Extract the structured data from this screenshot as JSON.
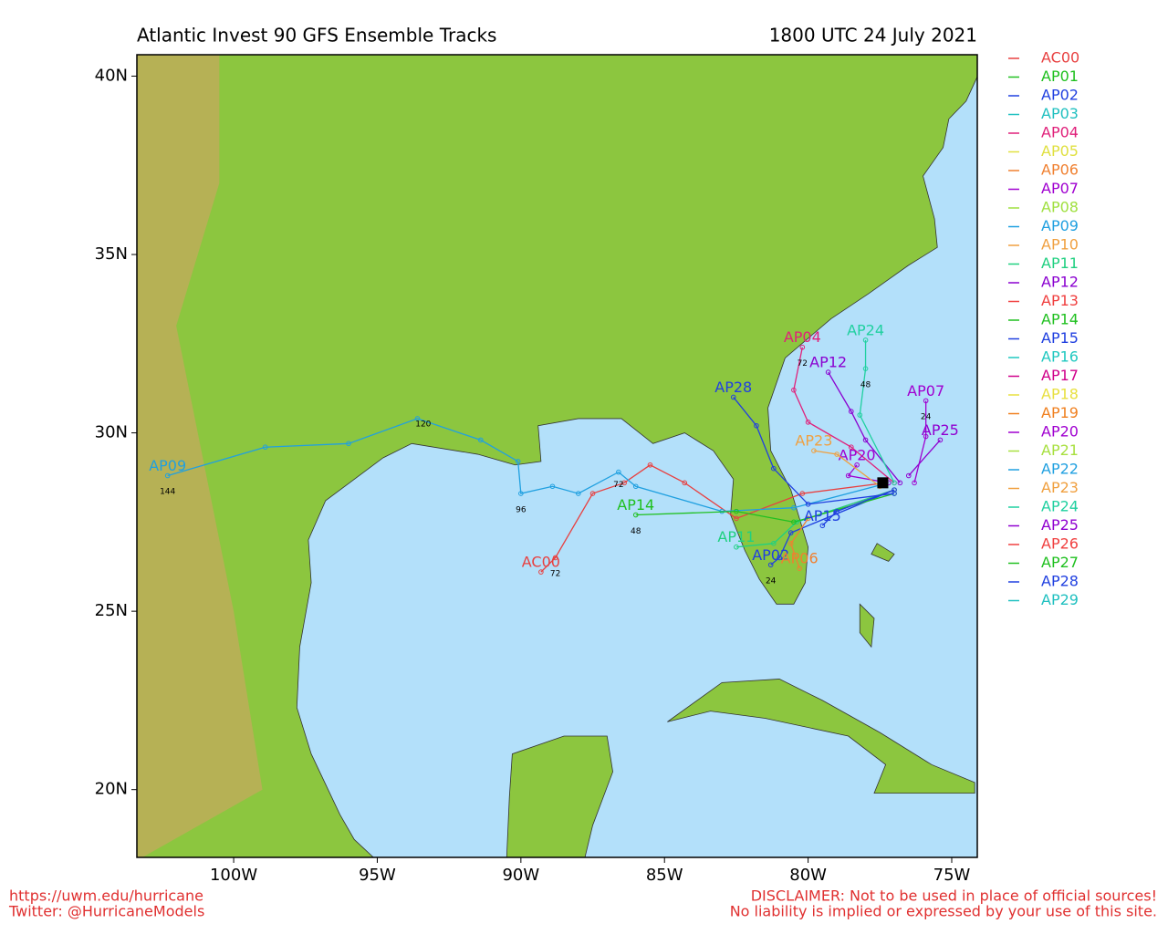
{
  "map_data": {
    "title": "Atlantic Invest 90 GFS Ensemble Tracks",
    "date": "1800 UTC 24 July 2021",
    "xlim": [
      -103.37,
      -74.11
    ],
    "ylim": [
      18.1,
      40.6
    ],
    "xticks": [
      {
        "value": -100,
        "label": "100W"
      },
      {
        "value": -95,
        "label": "95W"
      },
      {
        "value": -90,
        "label": "90W"
      },
      {
        "value": -85,
        "label": "85W"
      },
      {
        "value": -80,
        "label": "80W"
      },
      {
        "value": -75,
        "label": "75W"
      }
    ],
    "yticks": [
      {
        "value": 20,
        "label": "20N"
      },
      {
        "value": 25,
        "label": "25N"
      },
      {
        "value": 30,
        "label": "30N"
      },
      {
        "value": 35,
        "label": "35N"
      },
      {
        "value": 40,
        "label": "40N"
      }
    ],
    "members": [
      {
        "name": "AC00",
        "color": "#e84040",
        "track": [
          [
            -77.3,
            28.6
          ],
          [
            -80.2,
            28.3
          ],
          [
            -82.5,
            27.6
          ],
          [
            -84.3,
            28.6
          ],
          [
            -85.5,
            29.1
          ],
          [
            -86.4,
            28.6
          ],
          [
            -87.5,
            28.3
          ],
          [
            -88.8,
            26.5
          ],
          [
            -89.3,
            26.1
          ]
        ]
      },
      {
        "name": "AP01",
        "color": "#20c020"
      },
      {
        "name": "AP02",
        "color": "#2040e0",
        "track": [
          [
            -77.0,
            28.4
          ],
          [
            -80.6,
            27.2
          ],
          [
            -81.0,
            26.5
          ],
          [
            -81.3,
            26.3
          ]
        ]
      },
      {
        "name": "AP03",
        "color": "#20c0c0"
      },
      {
        "name": "AP04",
        "color": "#e0207a",
        "track": [
          [
            -77.0,
            28.6
          ],
          [
            -78.5,
            29.6
          ],
          [
            -80.0,
            30.3
          ],
          [
            -80.5,
            31.2
          ],
          [
            -80.2,
            32.4
          ]
        ]
      },
      {
        "name": "AP05",
        "color": "#e0e040"
      },
      {
        "name": "AP06",
        "color": "#f08030",
        "track": [
          [
            -77.0,
            28.4
          ],
          [
            -80.0,
            27.6
          ],
          [
            -80.6,
            26.9
          ],
          [
            -80.3,
            26.2
          ]
        ]
      },
      {
        "name": "AP07",
        "color": "#a000d0",
        "track": [
          [
            -76.3,
            28.6
          ],
          [
            -75.9,
            29.9
          ],
          [
            -75.9,
            30.9
          ]
        ]
      },
      {
        "name": "AP08",
        "color": "#a0e040"
      },
      {
        "name": "AP09",
        "color": "#20a0e0",
        "track": [
          [
            -77.2,
            28.6
          ],
          [
            -80.5,
            27.9
          ],
          [
            -83.0,
            27.8
          ],
          [
            -86.0,
            28.5
          ],
          [
            -86.6,
            28.9
          ],
          [
            -88.0,
            28.3
          ],
          [
            -88.9,
            28.5
          ],
          [
            -90.0,
            28.3
          ],
          [
            -90.1,
            29.2
          ],
          [
            -91.4,
            29.8
          ],
          [
            -93.6,
            30.4
          ],
          [
            -96.0,
            29.7
          ],
          [
            -98.9,
            29.6
          ],
          [
            -102.3,
            28.8
          ]
        ]
      },
      {
        "name": "AP10",
        "color": "#f0a040"
      },
      {
        "name": "AP11",
        "color": "#20d080",
        "track": [
          [
            -77.0,
            28.4
          ],
          [
            -80.4,
            27.5
          ],
          [
            -81.2,
            26.9
          ],
          [
            -82.5,
            26.8
          ]
        ]
      },
      {
        "name": "AP12",
        "color": "#8a00d0",
        "track": [
          [
            -76.8,
            28.6
          ],
          [
            -78.0,
            29.8
          ],
          [
            -78.5,
            30.6
          ],
          [
            -79.3,
            31.7
          ]
        ]
      },
      {
        "name": "AP13",
        "color": "#f04040"
      },
      {
        "name": "AP14",
        "color": "#20c020",
        "track": [
          [
            -77.0,
            28.3
          ],
          [
            -80.5,
            27.5
          ],
          [
            -82.5,
            27.8
          ],
          [
            -86.0,
            27.7
          ]
        ]
      },
      {
        "name": "AP15",
        "color": "#2040e0",
        "track": [
          [
            -77.0,
            28.4
          ],
          [
            -79.0,
            27.8
          ],
          [
            -79.5,
            27.4
          ]
        ]
      },
      {
        "name": "AP16",
        "color": "#20c8c0"
      },
      {
        "name": "AP17",
        "color": "#d0008a"
      },
      {
        "name": "AP18",
        "color": "#e8e040"
      },
      {
        "name": "AP19",
        "color": "#f08020"
      },
      {
        "name": "AP20",
        "color": "#a000d0",
        "track": [
          [
            -77.2,
            28.6
          ],
          [
            -78.6,
            28.8
          ],
          [
            -78.3,
            29.1
          ]
        ]
      },
      {
        "name": "AP21",
        "color": "#a8e040"
      },
      {
        "name": "AP22",
        "color": "#20a0e0"
      },
      {
        "name": "AP23",
        "color": "#f0a040",
        "track": [
          [
            -77.5,
            28.5
          ],
          [
            -79.0,
            29.4
          ],
          [
            -79.8,
            29.5
          ]
        ]
      },
      {
        "name": "AP24",
        "color": "#20d0a0",
        "track": [
          [
            -77.0,
            28.6
          ],
          [
            -78.2,
            30.5
          ],
          [
            -78.0,
            31.8
          ],
          [
            -78.0,
            32.6
          ]
        ]
      },
      {
        "name": "AP25",
        "color": "#9000d0",
        "track": [
          [
            -76.5,
            28.8
          ],
          [
            -75.4,
            29.8
          ]
        ]
      },
      {
        "name": "AP26",
        "color": "#f04040"
      },
      {
        "name": "AP27",
        "color": "#20c020"
      },
      {
        "name": "AP28",
        "color": "#2040e0",
        "track": [
          [
            -77.0,
            28.3
          ],
          [
            -80.0,
            28.0
          ],
          [
            -81.2,
            29.0
          ],
          [
            -81.8,
            30.2
          ],
          [
            -82.6,
            31.0
          ]
        ]
      },
      {
        "name": "AP29",
        "color": "#20c0c0"
      }
    ],
    "hour_labels": [
      {
        "lon": -88.8,
        "lat": 26.2,
        "text": 72
      },
      {
        "lon": -86.6,
        "lat": 28.7,
        "text": 72
      },
      {
        "lon": -90.0,
        "lat": 28.0,
        "text": 96
      },
      {
        "lon": -93.4,
        "lat": 30.4,
        "text": 120
      },
      {
        "lon": -102.3,
        "lat": 28.5,
        "text": 144
      },
      {
        "lon": -86.0,
        "lat": 27.4,
        "text": 48
      },
      {
        "lon": -80.2,
        "lat": 32.1,
        "text": 72
      },
      {
        "lon": -78.0,
        "lat": 31.5,
        "text": 48
      },
      {
        "lon": -75.9,
        "lat": 30.6,
        "text": 24
      },
      {
        "lon": -81.3,
        "lat": 26.0,
        "text": 24
      }
    ],
    "footer_left": [
      "https://uwm.edu/hurricane",
      "Twitter: @HurricaneModels"
    ],
    "footer_right": [
      "DISCLAIMER: Not to be used in place of official sources!",
      "No liability is implied or expressed by your use of this site."
    ]
  }
}
